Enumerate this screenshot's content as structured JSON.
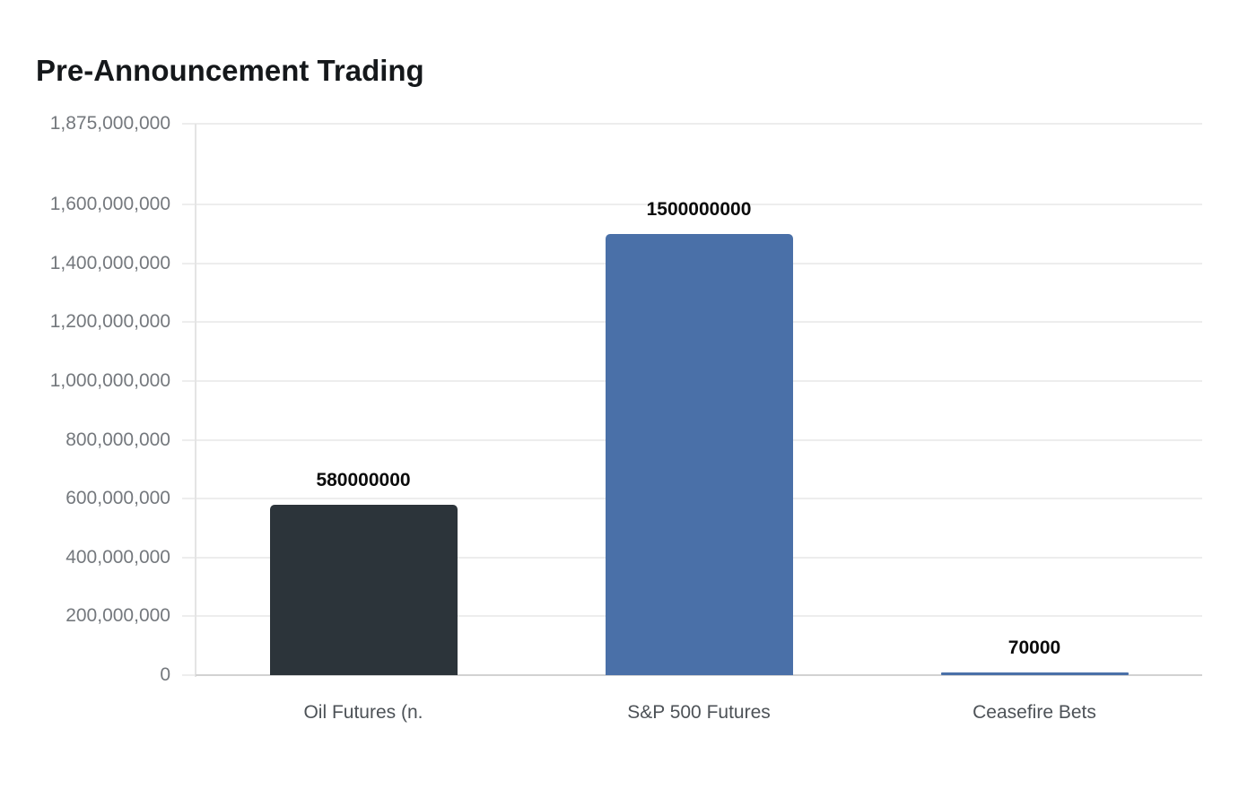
{
  "chart_data": {
    "type": "bar",
    "title": "Pre-Announcement Trading",
    "categories": [
      "Oil Futures (n.",
      "S&P 500 Futures",
      "Ceasefire Bets"
    ],
    "values": [
      580000000,
      1500000000,
      70000
    ],
    "value_labels": [
      "580000000",
      "1500000000",
      "70000"
    ],
    "bar_colors": [
      "#2c343a",
      "#4a70a8",
      "#4a70a8"
    ],
    "xlabel": "",
    "ylabel": "",
    "ylim": [
      0,
      1875000000
    ],
    "y_ticks": [
      0,
      200000000,
      400000000,
      600000000,
      800000000,
      1000000000,
      1200000000,
      1400000000,
      1600000000,
      1875000000
    ],
    "y_tick_labels": [
      "0",
      "200,000,000",
      "400,000,000",
      "600,000,000",
      "800,000,000",
      "1,000,000,000",
      "1,200,000,000",
      "1,400,000,000",
      "1,600,000,000",
      "1,875,000,000"
    ],
    "grid": true,
    "legend_position": "none",
    "colors": {
      "background": "#ffffff",
      "title": "#15181b",
      "value_label": "#0b0b0b",
      "y_tick_label": "#74787d",
      "x_tick_label": "#4d5257",
      "gridline": "#ededed",
      "axis_line": "#e4e4e4",
      "baseline": "#d2d2d2",
      "bar_dark": "#2c343a",
      "bar_blue": "#4a70a8"
    }
  }
}
